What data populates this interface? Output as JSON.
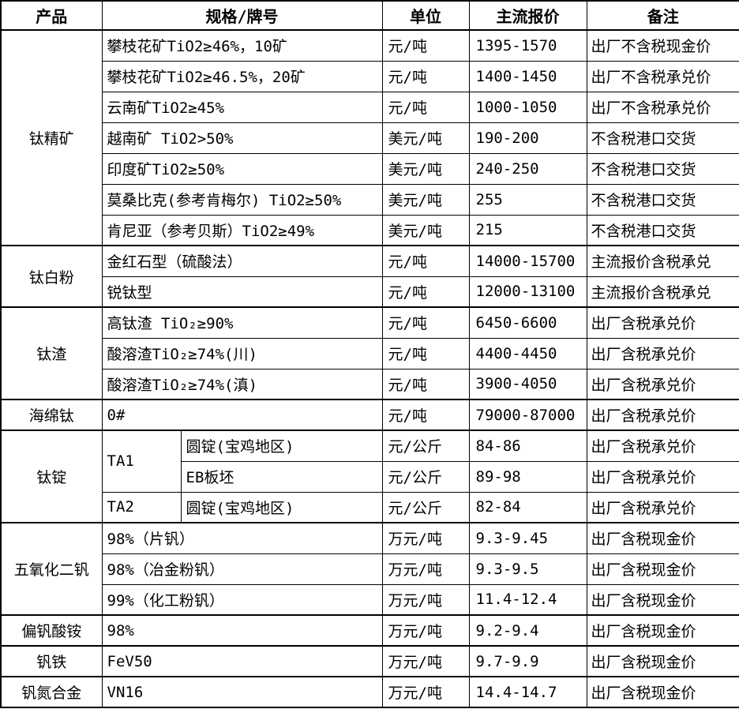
{
  "table": {
    "columns": [
      "产品",
      "规格/牌号",
      "单位",
      "主流报价",
      "备注"
    ],
    "rows": [
      {
        "group_start": true,
        "cells": [
          {
            "text": "钛精矿",
            "type": "product",
            "rowspan": 7
          },
          {
            "text": "攀枝花矿TiO2≥46%，10矿",
            "type": "spec",
            "colspan": 2
          },
          {
            "text": "元/吨",
            "type": "unit"
          },
          {
            "text": "1395-1570",
            "type": "price"
          },
          {
            "text": "出厂不含税现金价",
            "type": "note"
          }
        ]
      },
      {
        "cells": [
          {
            "text": "攀枝花矿TiO2≥46.5%，20矿",
            "type": "spec",
            "colspan": 2
          },
          {
            "text": "元/吨",
            "type": "unit"
          },
          {
            "text": "1400-1450",
            "type": "price"
          },
          {
            "text": "出厂不含税承兑价",
            "type": "note"
          }
        ]
      },
      {
        "cells": [
          {
            "text": "云南矿TiO2≥45%",
            "type": "spec",
            "colspan": 2
          },
          {
            "text": "元/吨",
            "type": "unit"
          },
          {
            "text": "1000-1050",
            "type": "price"
          },
          {
            "text": "出厂不含税承兑价",
            "type": "note"
          }
        ]
      },
      {
        "cells": [
          {
            "text": "越南矿 TiO2>50%",
            "type": "spec",
            "colspan": 2
          },
          {
            "text": "美元/吨",
            "type": "unit"
          },
          {
            "text": "190-200",
            "type": "price"
          },
          {
            "text": "不含税港口交货",
            "type": "note"
          }
        ]
      },
      {
        "cells": [
          {
            "text": "印度矿TiO2≥50%",
            "type": "spec",
            "colspan": 2
          },
          {
            "text": "美元/吨",
            "type": "unit"
          },
          {
            "text": "240-250",
            "type": "price"
          },
          {
            "text": "不含税港口交货",
            "type": "note"
          }
        ]
      },
      {
        "cells": [
          {
            "text": "莫桑比克(参考肯梅尔) TiO2≥50%",
            "type": "spec",
            "colspan": 2
          },
          {
            "text": "美元/吨",
            "type": "unit"
          },
          {
            "text": "255",
            "type": "price"
          },
          {
            "text": "不含税港口交货",
            "type": "note"
          }
        ]
      },
      {
        "cells": [
          {
            "text": "肯尼亚（参考贝斯）TiO2≥49%",
            "type": "spec",
            "colspan": 2
          },
          {
            "text": "美元/吨",
            "type": "unit"
          },
          {
            "text": "215",
            "type": "price"
          },
          {
            "text": "不含税港口交货",
            "type": "note"
          }
        ]
      },
      {
        "group_start": true,
        "cells": [
          {
            "text": "钛白粉",
            "type": "product",
            "rowspan": 2
          },
          {
            "text": "金红石型（硫酸法）",
            "type": "spec",
            "colspan": 2
          },
          {
            "text": "元/吨",
            "type": "unit"
          },
          {
            "text": "14000-15700",
            "type": "price"
          },
          {
            "text": "主流报价含税承兑",
            "type": "note"
          }
        ]
      },
      {
        "cells": [
          {
            "text": "锐钛型",
            "type": "spec",
            "colspan": 2
          },
          {
            "text": "元/吨",
            "type": "unit"
          },
          {
            "text": "12000-13100",
            "type": "price"
          },
          {
            "text": "主流报价含税承兑",
            "type": "note"
          }
        ]
      },
      {
        "group_start": true,
        "cells": [
          {
            "text": "钛渣",
            "type": "product",
            "rowspan": 3
          },
          {
            "text": "高钛渣 TiO₂≥90%",
            "type": "spec",
            "colspan": 2
          },
          {
            "text": "元/吨",
            "type": "unit"
          },
          {
            "text": "6450-6600",
            "type": "price"
          },
          {
            "text": "出厂含税承兑价",
            "type": "note"
          }
        ]
      },
      {
        "cells": [
          {
            "text": "酸溶渣TiO₂≥74%(川)",
            "type": "spec",
            "colspan": 2
          },
          {
            "text": "元/吨",
            "type": "unit"
          },
          {
            "text": "4400-4450",
            "type": "price"
          },
          {
            "text": "出厂含税承兑价",
            "type": "note"
          }
        ]
      },
      {
        "cells": [
          {
            "text": "酸溶渣TiO₂≥74%(滇)",
            "type": "spec",
            "colspan": 2
          },
          {
            "text": "元/吨",
            "type": "unit"
          },
          {
            "text": "3900-4050",
            "type": "price"
          },
          {
            "text": "出厂含税承兑价",
            "type": "note"
          }
        ]
      },
      {
        "group_start": true,
        "cells": [
          {
            "text": "海绵钛",
            "type": "product"
          },
          {
            "text": "0#",
            "type": "spec",
            "colspan": 2
          },
          {
            "text": "元/吨",
            "type": "unit"
          },
          {
            "text": "79000-87000",
            "type": "price"
          },
          {
            "text": "出厂含税承兑价",
            "type": "note"
          }
        ]
      },
      {
        "group_start": true,
        "cells": [
          {
            "text": "钛锭",
            "type": "product",
            "rowspan": 3
          },
          {
            "text": "TA1",
            "type": "ta",
            "rowspan": 2
          },
          {
            "text": "圆锭(宝鸡地区)",
            "type": "spec"
          },
          {
            "text": "元/公斤",
            "type": "unit"
          },
          {
            "text": "84-86",
            "type": "price"
          },
          {
            "text": "出厂含税承兑价",
            "type": "note"
          }
        ]
      },
      {
        "cells": [
          {
            "text": "EB板坯",
            "type": "spec"
          },
          {
            "text": "元/公斤",
            "type": "unit"
          },
          {
            "text": "89-98",
            "type": "price"
          },
          {
            "text": "出厂含税承兑价",
            "type": "note"
          }
        ]
      },
      {
        "cells": [
          {
            "text": "TA2",
            "type": "ta"
          },
          {
            "text": "圆锭(宝鸡地区)",
            "type": "spec"
          },
          {
            "text": "元/公斤",
            "type": "unit"
          },
          {
            "text": "82-84",
            "type": "price"
          },
          {
            "text": "出厂含税承兑价",
            "type": "note"
          }
        ]
      },
      {
        "group_start": true,
        "cells": [
          {
            "text": "五氧化二钒",
            "type": "product",
            "rowspan": 3
          },
          {
            "text": "98%（片钒）",
            "type": "spec",
            "colspan": 2
          },
          {
            "text": "万元/吨",
            "type": "unit"
          },
          {
            "text": "9.3-9.45",
            "type": "price"
          },
          {
            "text": "出厂含税现金价",
            "type": "note"
          }
        ]
      },
      {
        "cells": [
          {
            "text": "98%（冶金粉钒）",
            "type": "spec",
            "colspan": 2
          },
          {
            "text": "万元/吨",
            "type": "unit"
          },
          {
            "text": "9.3-9.5",
            "type": "price"
          },
          {
            "text": "出厂含税现金价",
            "type": "note"
          }
        ]
      },
      {
        "cells": [
          {
            "text": "99%（化工粉钒）",
            "type": "spec",
            "colspan": 2
          },
          {
            "text": "万元/吨",
            "type": "unit"
          },
          {
            "text": "11.4-12.4",
            "type": "price"
          },
          {
            "text": "出厂含税现金价",
            "type": "note"
          }
        ]
      },
      {
        "group_start": true,
        "cells": [
          {
            "text": "偏钒酸铵",
            "type": "product"
          },
          {
            "text": "98%",
            "type": "spec",
            "colspan": 2
          },
          {
            "text": "万元/吨",
            "type": "unit"
          },
          {
            "text": "9.2-9.4",
            "type": "price"
          },
          {
            "text": "出厂含税现金价",
            "type": "note"
          }
        ]
      },
      {
        "group_start": true,
        "cells": [
          {
            "text": "钒铁",
            "type": "product"
          },
          {
            "text": "FeV50",
            "type": "spec",
            "colspan": 2
          },
          {
            "text": "万元/吨",
            "type": "unit"
          },
          {
            "text": "9.7-9.9",
            "type": "price"
          },
          {
            "text": "出厂含税现金价",
            "type": "note"
          }
        ]
      },
      {
        "group_start": true,
        "cells": [
          {
            "text": "钒氮合金",
            "type": "product"
          },
          {
            "text": "VN16",
            "type": "spec",
            "colspan": 2
          },
          {
            "text": "万元/吨",
            "type": "unit"
          },
          {
            "text": "14.4-14.7",
            "type": "price"
          },
          {
            "text": "出厂含税现金价",
            "type": "note"
          }
        ]
      }
    ]
  }
}
